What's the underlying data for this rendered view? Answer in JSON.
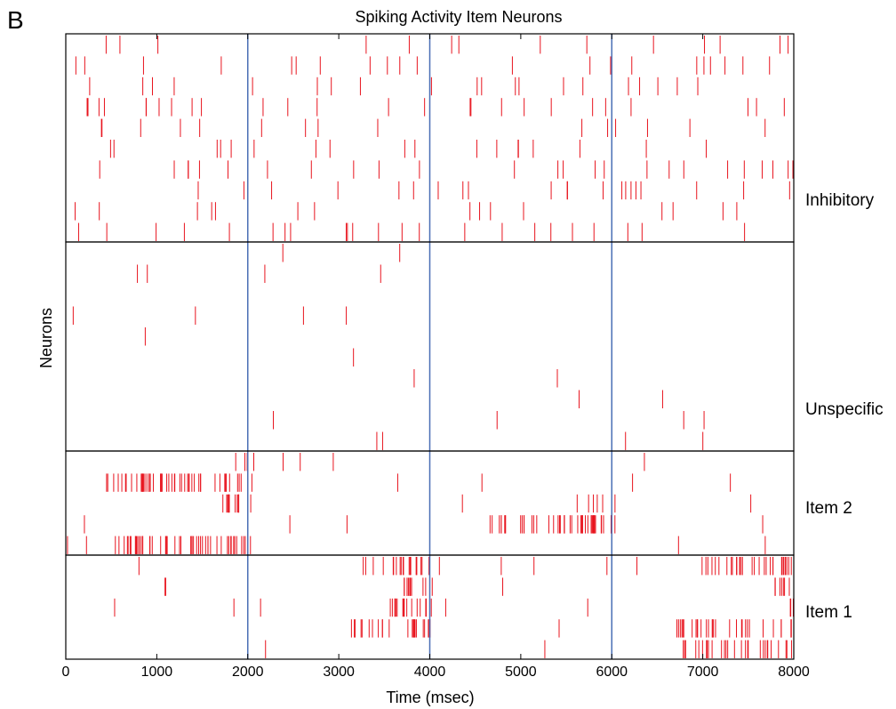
{
  "panel_letter": "B",
  "chart_data": {
    "type": "raster",
    "title": "Spiking Activity  Item Neurons",
    "xlabel": "Time (msec)",
    "ylabel": "Neurons",
    "xlim": [
      0,
      8000
    ],
    "xticks": [
      0,
      1000,
      2000,
      3000,
      4000,
      5000,
      6000,
      7000,
      8000
    ],
    "xtick_labels": [
      "0",
      "1000",
      "2000",
      "3000",
      "4000",
      "5000",
      "6000",
      "7000",
      "8000"
    ],
    "stimulus_markers_ms": [
      2000,
      4000,
      6000
    ],
    "spike_color": "#e8141e",
    "marker_color": "#4a6fb5",
    "groups": [
      {
        "name": "Inhibitory",
        "neurons": 10,
        "base_rate_hz": 2.4,
        "active_windows": []
      },
      {
        "name": "Unspecific",
        "neurons": 10,
        "base_rate_hz": 0.4,
        "active_windows": []
      },
      {
        "name": "Item 2",
        "neurons": 5,
        "base_rate_hz": 0.7,
        "active_windows": [
          {
            "start_ms": 300,
            "end_ms": 2000,
            "rate_hz": 30
          },
          {
            "start_ms": 4650,
            "end_ms": 6000,
            "rate_hz": 30
          }
        ]
      },
      {
        "name": "Item 1",
        "neurons": 5,
        "base_rate_hz": 0.7,
        "active_windows": [
          {
            "start_ms": 2550,
            "end_ms": 4000,
            "rate_hz": 30
          },
          {
            "start_ms": 6650,
            "end_ms": 8000,
            "rate_hz": 30
          }
        ]
      }
    ]
  }
}
